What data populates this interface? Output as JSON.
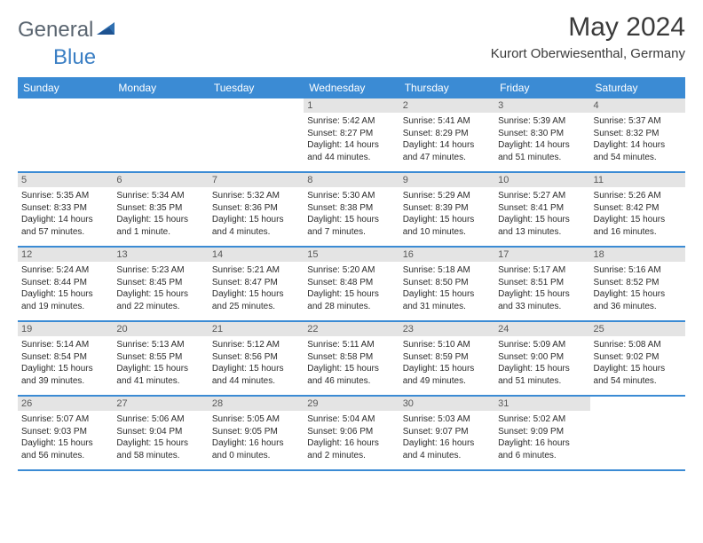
{
  "logo": {
    "text1": "General",
    "text2": "Blue"
  },
  "title": "May 2024",
  "subtitle": "Kurort Oberwiesenthal, Germany",
  "colors": {
    "header_bg": "#3b8bd4",
    "header_text": "#ffffff",
    "daynum_bg": "#e4e4e4",
    "daynum_text": "#595959",
    "border": "#3b8bd4",
    "body_text": "#2b2b2b",
    "title_text": "#3a3a3a",
    "logo_gray": "#5a6570",
    "logo_blue": "#3b7fc4"
  },
  "day_labels": [
    "Sunday",
    "Monday",
    "Tuesday",
    "Wednesday",
    "Thursday",
    "Friday",
    "Saturday"
  ],
  "weeks": [
    [
      {
        "empty": true
      },
      {
        "empty": true
      },
      {
        "empty": true
      },
      {
        "num": "1",
        "sunrise": "5:42 AM",
        "sunset": "8:27 PM",
        "daylight": "14 hours and 44 minutes."
      },
      {
        "num": "2",
        "sunrise": "5:41 AM",
        "sunset": "8:29 PM",
        "daylight": "14 hours and 47 minutes."
      },
      {
        "num": "3",
        "sunrise": "5:39 AM",
        "sunset": "8:30 PM",
        "daylight": "14 hours and 51 minutes."
      },
      {
        "num": "4",
        "sunrise": "5:37 AM",
        "sunset": "8:32 PM",
        "daylight": "14 hours and 54 minutes."
      }
    ],
    [
      {
        "num": "5",
        "sunrise": "5:35 AM",
        "sunset": "8:33 PM",
        "daylight": "14 hours and 57 minutes."
      },
      {
        "num": "6",
        "sunrise": "5:34 AM",
        "sunset": "8:35 PM",
        "daylight": "15 hours and 1 minute."
      },
      {
        "num": "7",
        "sunrise": "5:32 AM",
        "sunset": "8:36 PM",
        "daylight": "15 hours and 4 minutes."
      },
      {
        "num": "8",
        "sunrise": "5:30 AM",
        "sunset": "8:38 PM",
        "daylight": "15 hours and 7 minutes."
      },
      {
        "num": "9",
        "sunrise": "5:29 AM",
        "sunset": "8:39 PM",
        "daylight": "15 hours and 10 minutes."
      },
      {
        "num": "10",
        "sunrise": "5:27 AM",
        "sunset": "8:41 PM",
        "daylight": "15 hours and 13 minutes."
      },
      {
        "num": "11",
        "sunrise": "5:26 AM",
        "sunset": "8:42 PM",
        "daylight": "15 hours and 16 minutes."
      }
    ],
    [
      {
        "num": "12",
        "sunrise": "5:24 AM",
        "sunset": "8:44 PM",
        "daylight": "15 hours and 19 minutes."
      },
      {
        "num": "13",
        "sunrise": "5:23 AM",
        "sunset": "8:45 PM",
        "daylight": "15 hours and 22 minutes."
      },
      {
        "num": "14",
        "sunrise": "5:21 AM",
        "sunset": "8:47 PM",
        "daylight": "15 hours and 25 minutes."
      },
      {
        "num": "15",
        "sunrise": "5:20 AM",
        "sunset": "8:48 PM",
        "daylight": "15 hours and 28 minutes."
      },
      {
        "num": "16",
        "sunrise": "5:18 AM",
        "sunset": "8:50 PM",
        "daylight": "15 hours and 31 minutes."
      },
      {
        "num": "17",
        "sunrise": "5:17 AM",
        "sunset": "8:51 PM",
        "daylight": "15 hours and 33 minutes."
      },
      {
        "num": "18",
        "sunrise": "5:16 AM",
        "sunset": "8:52 PM",
        "daylight": "15 hours and 36 minutes."
      }
    ],
    [
      {
        "num": "19",
        "sunrise": "5:14 AM",
        "sunset": "8:54 PM",
        "daylight": "15 hours and 39 minutes."
      },
      {
        "num": "20",
        "sunrise": "5:13 AM",
        "sunset": "8:55 PM",
        "daylight": "15 hours and 41 minutes."
      },
      {
        "num": "21",
        "sunrise": "5:12 AM",
        "sunset": "8:56 PM",
        "daylight": "15 hours and 44 minutes."
      },
      {
        "num": "22",
        "sunrise": "5:11 AM",
        "sunset": "8:58 PM",
        "daylight": "15 hours and 46 minutes."
      },
      {
        "num": "23",
        "sunrise": "5:10 AM",
        "sunset": "8:59 PM",
        "daylight": "15 hours and 49 minutes."
      },
      {
        "num": "24",
        "sunrise": "5:09 AM",
        "sunset": "9:00 PM",
        "daylight": "15 hours and 51 minutes."
      },
      {
        "num": "25",
        "sunrise": "5:08 AM",
        "sunset": "9:02 PM",
        "daylight": "15 hours and 54 minutes."
      }
    ],
    [
      {
        "num": "26",
        "sunrise": "5:07 AM",
        "sunset": "9:03 PM",
        "daylight": "15 hours and 56 minutes."
      },
      {
        "num": "27",
        "sunrise": "5:06 AM",
        "sunset": "9:04 PM",
        "daylight": "15 hours and 58 minutes."
      },
      {
        "num": "28",
        "sunrise": "5:05 AM",
        "sunset": "9:05 PM",
        "daylight": "16 hours and 0 minutes."
      },
      {
        "num": "29",
        "sunrise": "5:04 AM",
        "sunset": "9:06 PM",
        "daylight": "16 hours and 2 minutes."
      },
      {
        "num": "30",
        "sunrise": "5:03 AM",
        "sunset": "9:07 PM",
        "daylight": "16 hours and 4 minutes."
      },
      {
        "num": "31",
        "sunrise": "5:02 AM",
        "sunset": "9:09 PM",
        "daylight": "16 hours and 6 minutes."
      },
      {
        "empty": true
      }
    ]
  ]
}
